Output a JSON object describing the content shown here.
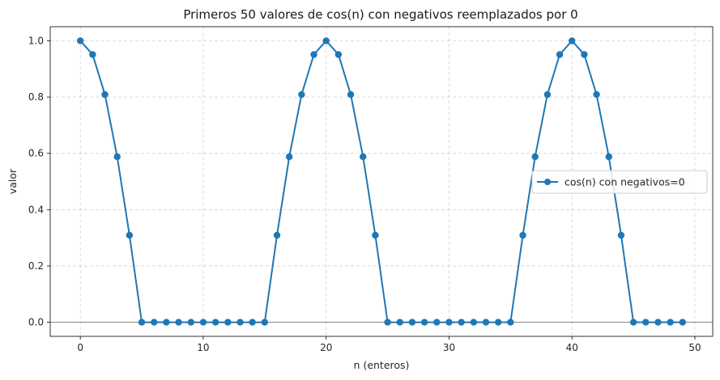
{
  "chart_data": {
    "type": "line",
    "title": "Primeros 50 valores de cos(n) con negativos reemplazados por 0",
    "xlabel": "n (enteros)",
    "ylabel": "valor",
    "xlim": [
      -2.45,
      51.45
    ],
    "ylim": [
      -0.05,
      1.05
    ],
    "xticks": [
      0,
      10,
      20,
      30,
      40,
      50
    ],
    "yticks": [
      0.0,
      0.2,
      0.4,
      0.6,
      0.8,
      1.0
    ],
    "xtick_labels": [
      "0",
      "10",
      "20",
      "30",
      "40",
      "50"
    ],
    "ytick_labels": [
      "0.0",
      "0.2",
      "0.4",
      "0.6",
      "0.8",
      "1.0"
    ],
    "grid": true,
    "baseline": 0,
    "legend_position": "center-right",
    "line_color": "#1f77b4",
    "series": [
      {
        "name": "cos(n) con negativos=0",
        "x": [
          0,
          1,
          2,
          3,
          4,
          5,
          6,
          7,
          8,
          9,
          10,
          11,
          12,
          13,
          14,
          15,
          16,
          17,
          18,
          19,
          20,
          21,
          22,
          23,
          24,
          25,
          26,
          27,
          28,
          29,
          30,
          31,
          32,
          33,
          34,
          35,
          36,
          37,
          38,
          39,
          40,
          41,
          42,
          43,
          44,
          45,
          46,
          47,
          48,
          49
        ],
        "values": [
          1.0,
          0.951,
          0.809,
          0.588,
          0.309,
          0,
          0,
          0,
          0,
          0,
          0,
          0,
          0,
          0,
          0,
          0,
          0.309,
          0.588,
          0.809,
          0.951,
          1.0,
          0.951,
          0.809,
          0.588,
          0.309,
          0,
          0,
          0,
          0,
          0,
          0,
          0,
          0,
          0,
          0,
          0,
          0.309,
          0.588,
          0.809,
          0.951,
          1.0,
          0.951,
          0.809,
          0.588,
          0.309,
          0,
          0,
          0,
          0,
          0
        ]
      }
    ]
  }
}
